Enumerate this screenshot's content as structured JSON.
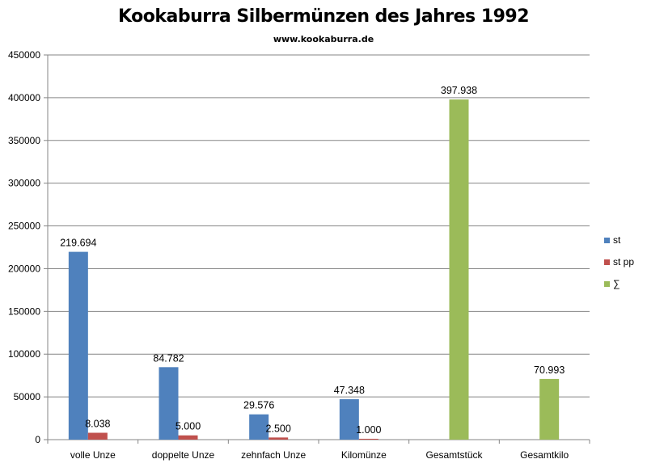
{
  "chart_data": {
    "type": "bar",
    "title": "Kookaburra Silbermünzen des Jahres 1992",
    "subtitle": "www.kookaburra.de",
    "xlabel": "",
    "ylabel": "",
    "ylim": [
      0,
      450000
    ],
    "yticks": [
      0,
      50000,
      100000,
      150000,
      200000,
      250000,
      300000,
      350000,
      400000,
      450000
    ],
    "ytick_labels": [
      "0",
      "50000",
      "100000",
      "150000",
      "200000",
      "250000",
      "300000",
      "350000",
      "400000",
      "450000"
    ],
    "grid": true,
    "legend_position": "right",
    "categories": [
      "volle Unze",
      "doppelte Unze",
      "zehnfach Unze",
      "Kilomünze",
      "Gesamtstück",
      "Gesamtkilo"
    ],
    "series": [
      {
        "name": "st",
        "color": "#4f81bd",
        "values": [
          219694,
          84782,
          29576,
          47348,
          null,
          null
        ],
        "labels": [
          "219.694",
          "84.782",
          "29.576",
          "47.348",
          null,
          null
        ]
      },
      {
        "name": "st pp",
        "color": "#c0504d",
        "values": [
          8038,
          5000,
          2500,
          1000,
          null,
          null
        ],
        "labels": [
          "8.038",
          "5.000",
          "2.500",
          "1.000",
          null,
          null
        ]
      },
      {
        "name": "∑",
        "color": "#9bbb59",
        "values": [
          null,
          null,
          null,
          null,
          397938,
          70993
        ],
        "labels": [
          null,
          null,
          null,
          null,
          "397.938",
          "70.993"
        ]
      }
    ]
  }
}
